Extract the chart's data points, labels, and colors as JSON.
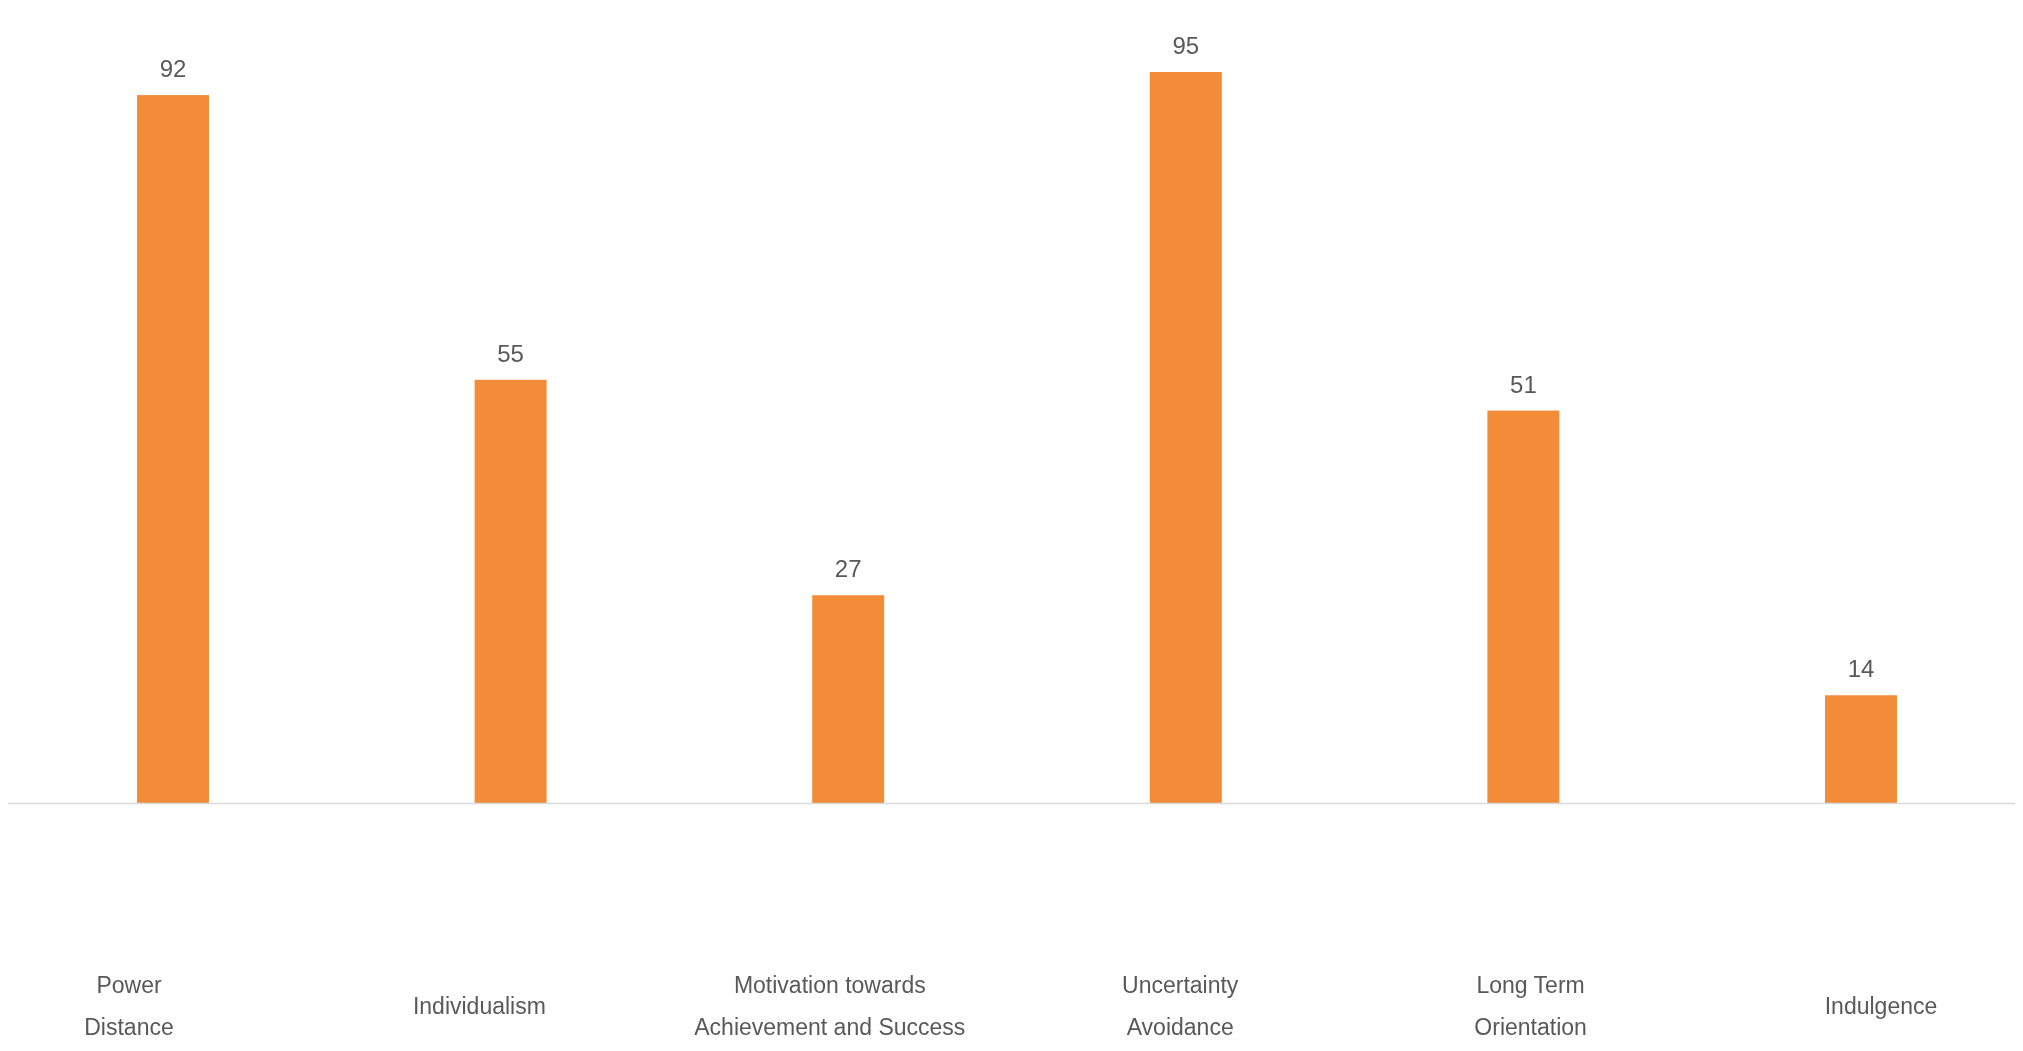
{
  "chart_data": {
    "type": "bar",
    "categories": [
      "Power\nDistance",
      "Individualism",
      "Motivation towards\nAchievement and Success",
      "Uncertainty\nAvoidance",
      "Long Term\nOrientation",
      "Indulgence"
    ],
    "values": [
      92,
      55,
      27,
      95,
      51,
      14
    ],
    "color": "#f28c38",
    "data_labels": true
  }
}
